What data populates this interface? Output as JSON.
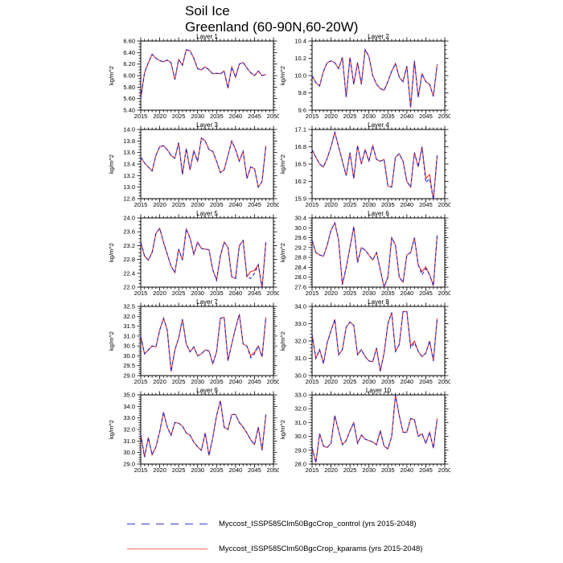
{
  "header": {
    "title_line1": "Soil Ice",
    "title_line2": "Greenland (60-90N,60-20W)"
  },
  "legend": {
    "entries": [
      {
        "label": "Myccost_ISSP585Clm50BgcCrop_control (yrs 2015-2048)",
        "style": "dashed",
        "color": "#6b6bdb"
      },
      {
        "label": "Myccost_ISSP585Clm50BgcCrop_kparams (yrs 2015-2048)",
        "style": "solid",
        "color": "#f08080"
      }
    ]
  },
  "chart_data": {
    "type": "line",
    "x_start": 2015,
    "x_end": 2048,
    "xlim": [
      2015,
      2050
    ],
    "xticks": [
      2015,
      2020,
      2025,
      2030,
      2035,
      2040,
      2045,
      2050
    ],
    "ylabel": "kg/m^2",
    "colors": {
      "control": "#2323cc",
      "kparams": "#ee2c2c"
    },
    "series_names": [
      "control",
      "kparams"
    ],
    "panels": [
      {
        "title": "Layer 1",
        "ylim": [
          5.4,
          6.6
        ],
        "yticklabels": [
          "5.40",
          "5.60",
          "5.80",
          "6.00",
          "6.20",
          "6.40",
          "6.60"
        ],
        "yminor": 3,
        "control": [
          5.6,
          6.05,
          6.22,
          6.37,
          6.3,
          6.26,
          6.24,
          6.27,
          6.22,
          5.93,
          6.28,
          6.18,
          6.45,
          6.43,
          6.3,
          6.12,
          6.1,
          6.15,
          6.1,
          6.03,
          6.04,
          6.03,
          6.08,
          5.78,
          6.15,
          5.97,
          6.2,
          6.23,
          6.13,
          6.05,
          6.0,
          6.08,
          6.0,
          6.02
        ],
        "kparams_diff": {}
      },
      {
        "title": "Layer 2",
        "ylim": [
          9.6,
          10.4
        ],
        "yticklabels": [
          "9.6",
          "9.8",
          "10.0",
          "10.2",
          "10.4"
        ],
        "yminor": 3,
        "control": [
          10.0,
          9.92,
          9.88,
          10.05,
          10.15,
          10.17,
          10.15,
          10.08,
          10.21,
          9.75,
          10.21,
          9.9,
          10.15,
          9.9,
          10.3,
          10.22,
          10.0,
          9.9,
          9.85,
          9.83,
          9.93,
          10.05,
          10.14,
          9.98,
          9.93,
          10.11,
          9.63,
          10.17,
          9.75,
          10.02,
          9.93,
          9.9,
          9.76,
          10.13
        ],
        "kparams_diff": {}
      },
      {
        "title": "Layer 3",
        "ylim": [
          12.8,
          14.0
        ],
        "yticklabels": [
          "12.8",
          "13.0",
          "13.2",
          "13.4",
          "13.6",
          "13.8",
          "14.0"
        ],
        "yminor": 3,
        "control": [
          13.52,
          13.42,
          13.35,
          13.28,
          13.55,
          13.7,
          13.72,
          13.65,
          13.55,
          13.5,
          13.77,
          13.22,
          13.67,
          13.3,
          13.63,
          13.45,
          13.85,
          13.8,
          13.65,
          13.62,
          13.45,
          13.25,
          13.3,
          13.55,
          13.8,
          13.65,
          13.45,
          13.62,
          13.15,
          13.35,
          13.32,
          13.0,
          13.1,
          13.72
        ],
        "kparams_diff": {}
      },
      {
        "title": "Layer 4",
        "ylim": [
          15.9,
          17.1
        ],
        "yticklabels": [
          "15.9",
          "16.2",
          "16.5",
          "16.8",
          "17.1"
        ],
        "yminor": 2,
        "control": [
          16.75,
          16.62,
          16.5,
          16.45,
          16.6,
          16.8,
          17.05,
          16.8,
          16.55,
          16.3,
          16.7,
          16.25,
          16.82,
          16.5,
          16.75,
          16.55,
          16.82,
          16.58,
          16.55,
          16.58,
          16.12,
          16.1,
          16.62,
          16.68,
          16.55,
          16.2,
          16.1,
          16.7,
          16.45,
          16.8,
          16.18,
          16.25,
          15.88,
          16.65
        ],
        "kparams_diff": {
          "30": 16.25,
          "31": 16.32
        }
      },
      {
        "title": "Layer 5",
        "ylim": [
          22.0,
          24.0
        ],
        "yticklabels": [
          "22.0",
          "22.4",
          "22.8",
          "23.2",
          "23.6",
          "24.0"
        ],
        "yminor": 3,
        "control": [
          23.3,
          22.9,
          22.78,
          23.0,
          23.55,
          23.7,
          23.3,
          22.95,
          22.6,
          22.42,
          23.1,
          22.78,
          23.68,
          23.42,
          22.95,
          23.3,
          23.12,
          23.1,
          23.08,
          22.5,
          22.2,
          22.9,
          23.3,
          23.15,
          22.3,
          22.25,
          23.2,
          23.35,
          22.3,
          22.25,
          22.4,
          22.65,
          21.97,
          23.3
        ],
        "kparams_diff": {
          "29": 22.45,
          "30": 22.48
        }
      },
      {
        "title": "Layer 6",
        "ylim": [
          27.6,
          30.4
        ],
        "yticklabels": [
          "27.6",
          "28.0",
          "28.4",
          "28.8",
          "29.2",
          "29.6",
          "30.0",
          "30.4"
        ],
        "yminor": 3,
        "control": [
          29.5,
          29.0,
          28.9,
          28.85,
          29.3,
          29.9,
          30.2,
          29.5,
          27.7,
          28.4,
          29.2,
          30.05,
          28.6,
          29.2,
          29.1,
          28.9,
          28.7,
          29.0,
          28.3,
          27.6,
          28.0,
          29.6,
          29.3,
          28.0,
          27.8,
          28.9,
          29.0,
          29.6,
          28.5,
          28.1,
          28.35,
          28.1,
          27.65,
          29.7
        ],
        "kparams_diff": {
          "29": 28.22,
          "30": 28.42
        }
      },
      {
        "title": "Layer 7",
        "ylim": [
          29.0,
          32.5
        ],
        "yticklabels": [
          "29.0",
          "29.5",
          "30.0",
          "30.5",
          "31.0",
          "31.5",
          "32.0",
          "32.5"
        ],
        "yminor": 4,
        "control": [
          31.0,
          30.1,
          30.3,
          30.5,
          30.45,
          31.3,
          31.9,
          31.3,
          29.2,
          30.3,
          30.9,
          31.85,
          30.6,
          30.2,
          30.45,
          30.0,
          30.1,
          30.3,
          30.25,
          29.6,
          30.2,
          31.9,
          31.95,
          29.75,
          30.6,
          31.4,
          32.1,
          30.6,
          30.5,
          29.9,
          30.1,
          30.5,
          29.95,
          31.95
        ],
        "kparams_diff": {
          "29": 30.0,
          "30": 30.18
        }
      },
      {
        "title": "Layer 8",
        "ylim": [
          30.0,
          34.0
        ],
        "yticklabels": [
          "30.0",
          "31.0",
          "32.0",
          "33.0",
          "34.0"
        ],
        "yminor": 4,
        "control": [
          32.4,
          31.0,
          31.5,
          30.7,
          31.9,
          32.6,
          33.25,
          31.2,
          31.5,
          32.8,
          33.1,
          32.9,
          31.2,
          31.5,
          31.1,
          30.85,
          30.8,
          31.6,
          30.25,
          31.3,
          33.0,
          33.65,
          31.4,
          31.8,
          33.7,
          33.7,
          31.6,
          31.9,
          31.4,
          31.1,
          31.3,
          32.0,
          30.85,
          33.3
        ],
        "kparams_diff": {
          "26": 31.72,
          "27": 32.0
        }
      },
      {
        "title": "Layer 9",
        "ylim": [
          29.0,
          35.0
        ],
        "yticklabels": [
          "29.0",
          "30.0",
          "31.0",
          "32.0",
          "33.0",
          "34.0",
          "35.0"
        ],
        "yminor": 4,
        "control": [
          31.6,
          29.6,
          31.3,
          29.8,
          30.5,
          31.8,
          33.5,
          32.2,
          31.5,
          32.6,
          32.55,
          32.3,
          31.7,
          31.5,
          30.9,
          30.5,
          30.2,
          31.7,
          29.75,
          31.3,
          33.2,
          34.5,
          32.2,
          32.0,
          33.3,
          33.3,
          32.6,
          32.2,
          31.7,
          31.1,
          30.7,
          32.2,
          30.2,
          33.3
        ],
        "kparams_diff": {}
      },
      {
        "title": "Layer 10",
        "ylim": [
          28.0,
          33.0
        ],
        "yticklabels": [
          "28.0",
          "29.0",
          "30.0",
          "31.0",
          "32.0",
          "33.0"
        ],
        "yminor": 4,
        "control": [
          29.2,
          28.1,
          30.2,
          29.3,
          29.2,
          29.5,
          31.5,
          30.4,
          29.4,
          29.7,
          30.4,
          31.0,
          29.5,
          30.1,
          29.8,
          29.7,
          29.6,
          29.4,
          30.4,
          29.3,
          29.1,
          30.0,
          33.0,
          31.5,
          30.3,
          30.3,
          31.3,
          31.2,
          30.0,
          30.2,
          29.5,
          30.3,
          29.15,
          31.3
        ],
        "kparams_diff": {}
      }
    ]
  }
}
